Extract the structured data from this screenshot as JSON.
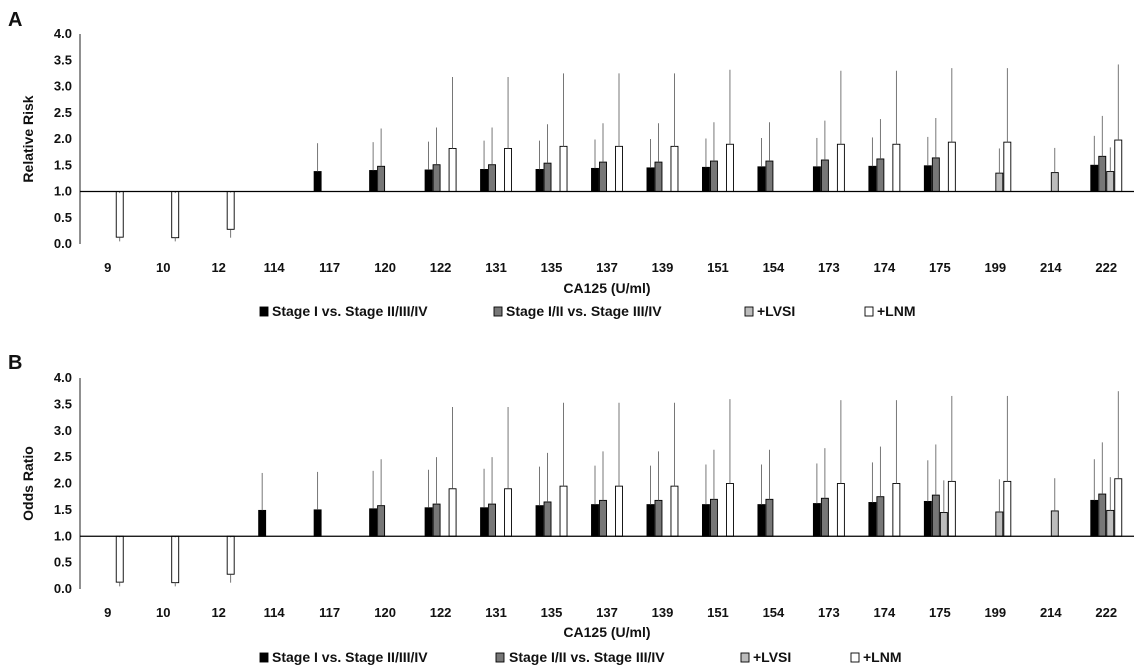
{
  "chart_data": [
    {
      "type": "bar",
      "panel_label": "A",
      "xlabel": "CA125 (U/ml)",
      "ylabel": "Relative Risk",
      "ylim": [
        0,
        4
      ],
      "yticks": [
        "0.0",
        "0.5",
        "1.0",
        "1.5",
        "2.0",
        "2.5",
        "3.0",
        "3.5",
        "4.0"
      ],
      "baseline": 1.0,
      "categories": [
        "9",
        "10",
        "12",
        "114",
        "117",
        "120",
        "122",
        "131",
        "135",
        "137",
        "139",
        "151",
        "154",
        "173",
        "174",
        "175",
        "199",
        "214",
        "222"
      ],
      "series": [
        {
          "name": "Stage I vs. Stage II/III/IV",
          "color": "#000000",
          "values": [
            null,
            null,
            null,
            null,
            1.38,
            1.4,
            1.41,
            1.42,
            1.42,
            1.44,
            1.45,
            1.46,
            1.47,
            1.47,
            1.48,
            1.49,
            null,
            null,
            1.5
          ],
          "upper": [
            null,
            null,
            null,
            null,
            1.92,
            1.94,
            1.95,
            1.97,
            1.97,
            1.99,
            2.0,
            2.01,
            2.02,
            2.02,
            2.03,
            2.04,
            null,
            null,
            2.06
          ]
        },
        {
          "name": "Stage I/II vs. Stage III/IV",
          "color": "#777777",
          "values": [
            null,
            null,
            null,
            null,
            null,
            1.48,
            1.51,
            1.51,
            1.54,
            1.56,
            1.56,
            1.58,
            1.58,
            1.6,
            1.62,
            1.64,
            null,
            null,
            1.67
          ],
          "upper": [
            null,
            null,
            null,
            null,
            null,
            2.2,
            2.22,
            2.22,
            2.28,
            2.3,
            2.3,
            2.32,
            2.32,
            2.35,
            2.38,
            2.4,
            null,
            null,
            2.44
          ]
        },
        {
          "name": "+LVSI",
          "color": "#bcbcbc",
          "values": [
            null,
            null,
            null,
            null,
            null,
            null,
            null,
            null,
            null,
            null,
            null,
            null,
            null,
            null,
            null,
            null,
            1.35,
            1.36,
            1.38
          ],
          "upper": [
            null,
            null,
            null,
            null,
            null,
            null,
            null,
            null,
            null,
            null,
            null,
            null,
            null,
            null,
            null,
            null,
            1.82,
            1.83,
            1.84
          ]
        },
        {
          "name": "+LNM",
          "color": "#ffffff",
          "values": [
            0.13,
            0.12,
            0.28,
            null,
            null,
            null,
            1.82,
            1.82,
            1.86,
            1.86,
            1.86,
            1.9,
            null,
            1.9,
            1.9,
            1.94,
            1.94,
            null,
            1.98
          ],
          "upper": [
            0.97,
            0.97,
            0.98,
            null,
            null,
            null,
            3.18,
            3.18,
            3.25,
            3.25,
            3.25,
            3.32,
            null,
            3.3,
            3.3,
            3.35,
            3.35,
            null,
            3.42
          ],
          "lower": [
            0.05,
            0.05,
            0.12,
            null,
            null,
            null,
            null,
            null,
            null,
            null,
            null,
            null,
            null,
            null,
            null,
            null,
            null,
            null,
            null
          ]
        }
      ],
      "legend": [
        "Stage I vs. Stage II/III/IV",
        "Stage I/II vs. Stage III/IV",
        "+LVSI",
        "+LNM"
      ],
      "legend_position": "bottom"
    },
    {
      "type": "bar",
      "panel_label": "B",
      "xlabel": "CA125 (U/ml)",
      "ylabel": "Odds Ratio",
      "ylim": [
        0,
        4
      ],
      "yticks": [
        "0.0",
        "0.5",
        "1.0",
        "1.5",
        "2.0",
        "2.5",
        "3.0",
        "3.5",
        "4.0"
      ],
      "baseline": 1.0,
      "categories": [
        "9",
        "10",
        "12",
        "114",
        "117",
        "120",
        "122",
        "131",
        "135",
        "137",
        "139",
        "151",
        "154",
        "173",
        "174",
        "175",
        "199",
        "214",
        "222"
      ],
      "series": [
        {
          "name": "Stage I vs. Stage II/III/IV",
          "color": "#000000",
          "values": [
            null,
            null,
            null,
            1.49,
            1.5,
            1.52,
            1.54,
            1.54,
            1.58,
            1.6,
            1.6,
            1.6,
            1.6,
            1.62,
            1.64,
            1.66,
            null,
            null,
            1.68
          ],
          "upper": [
            null,
            null,
            null,
            2.2,
            2.22,
            2.24,
            2.26,
            2.28,
            2.32,
            2.34,
            2.34,
            2.36,
            2.36,
            2.38,
            2.4,
            2.44,
            null,
            null,
            2.46
          ]
        },
        {
          "name": "Stage I/II vs. Stage III/IV",
          "color": "#777777",
          "values": [
            null,
            null,
            null,
            null,
            null,
            1.58,
            1.61,
            1.61,
            1.65,
            1.68,
            1.68,
            1.7,
            1.7,
            1.72,
            1.75,
            1.78,
            null,
            null,
            1.8
          ],
          "upper": [
            null,
            null,
            null,
            null,
            null,
            2.46,
            2.5,
            2.5,
            2.58,
            2.61,
            2.61,
            2.64,
            2.64,
            2.67,
            2.7,
            2.74,
            null,
            null,
            2.78
          ]
        },
        {
          "name": "+LVSI",
          "color": "#bcbcbc",
          "values": [
            null,
            null,
            null,
            null,
            null,
            null,
            null,
            null,
            null,
            null,
            null,
            null,
            null,
            null,
            null,
            1.45,
            1.46,
            1.48,
            1.49
          ],
          "upper": [
            null,
            null,
            null,
            null,
            null,
            null,
            null,
            null,
            null,
            null,
            null,
            null,
            null,
            null,
            null,
            2.06,
            2.08,
            2.1,
            2.12
          ]
        },
        {
          "name": "+LNM",
          "color": "#ffffff",
          "values": [
            0.13,
            0.12,
            0.28,
            null,
            null,
            null,
            1.9,
            1.9,
            1.95,
            1.95,
            1.95,
            2.0,
            null,
            2.0,
            2.0,
            2.04,
            2.04,
            null,
            2.09
          ],
          "upper": [
            0.98,
            0.98,
            0.98,
            null,
            null,
            null,
            3.45,
            3.45,
            3.53,
            3.53,
            3.53,
            3.6,
            null,
            3.58,
            3.58,
            3.66,
            3.66,
            null,
            3.75
          ],
          "lower": [
            0.05,
            0.05,
            0.12,
            null,
            null,
            null,
            null,
            null,
            null,
            null,
            null,
            null,
            null,
            null,
            null,
            null,
            null,
            null,
            null
          ]
        }
      ],
      "legend": [
        "Stage I vs. Stage II/III/IV",
        "Stage I/II vs. Stage III/IV",
        "+LVSI",
        "+LNM"
      ],
      "legend_position": "bottom"
    }
  ]
}
